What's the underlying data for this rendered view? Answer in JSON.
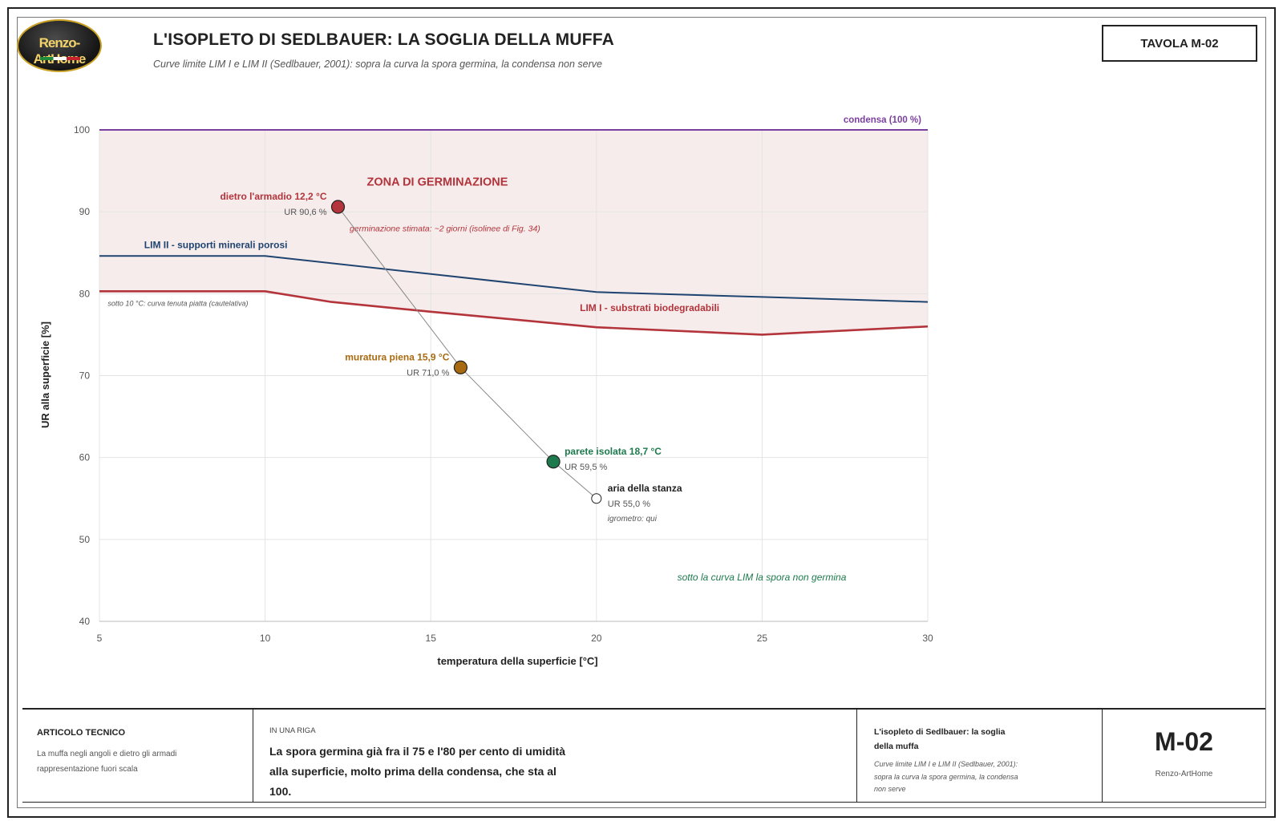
{
  "header": {
    "logo_text": "Renzo-ArtHome",
    "title": "L'ISOPLETO DI SEDLBAUER: LA SOGLIA DELLA MUFFA",
    "subtitle": "Curve limite LIM I e LIM II (Sedlbauer, 2001): sopra la curva la spora germina, la condensa non serve",
    "tavola": "TAVOLA M-02"
  },
  "colors": {
    "lim1": "#b3343a",
    "lim2": "#1f4470",
    "condensa": "#7b3fa0",
    "zone_fill": "#f6ecec",
    "muratura": "#a86a10",
    "isolata": "#1d7a4c",
    "note_green": "#1d7a4c"
  },
  "chart_data": {
    "type": "line",
    "xlabel": "temperatura della superficie [°C]",
    "ylabel": "UR alla superficie [%]",
    "xlim": [
      5,
      30
    ],
    "ylim": [
      40,
      100
    ],
    "x_ticks": [
      "5",
      "10",
      "15",
      "20",
      "25",
      "30"
    ],
    "y_ticks": [
      "40",
      "50",
      "60",
      "70",
      "80",
      "90",
      "100"
    ],
    "grid": true,
    "series": [
      {
        "name": "LIM II - supporti minerali porosi",
        "x": [
          5,
          10,
          15,
          20,
          25,
          30
        ],
        "y": [
          84.6,
          84.6,
          82.4,
          80.2,
          79.6,
          79.0
        ]
      },
      {
        "name": "LIM I - substrati biodegradabili",
        "x": [
          5,
          10,
          12,
          15,
          20,
          25,
          30
        ],
        "y": [
          80.3,
          80.3,
          79.0,
          77.8,
          75.9,
          75.0,
          76.0
        ]
      },
      {
        "name": "condensa (100 %)",
        "x": [
          5,
          30
        ],
        "y": [
          100,
          100
        ]
      }
    ],
    "points": [
      {
        "label": "dietro l'armadio 12,2 °C",
        "value": "UR 90,6 %",
        "x": 12.2,
        "y": 90.6
      },
      {
        "label": "muratura piena 15,9 °C",
        "value": "UR 71,0 %",
        "x": 15.9,
        "y": 71.0
      },
      {
        "label": "parete isolata 18,7 °C",
        "value": "UR 59,5 %",
        "x": 18.7,
        "y": 59.5
      },
      {
        "label": "aria della stanza",
        "value": "UR 55,0 %",
        "note": "igrometro: qui",
        "x": 20.0,
        "y": 55.0
      }
    ],
    "annotations": {
      "zone": "ZONA DI GERMINAZIONE",
      "germination": "germinazione stimata: ~2 giorni (isolinee di Fig. 34)",
      "flat": "sotto 10 °C: curva tenuta piatta (cautelativa)",
      "below": "sotto la curva LIM la spora non germina"
    }
  },
  "footer": {
    "col1_head": "ARTICOLO TECNICO",
    "col1_line1": "La muffa negli angoli e dietro gli armadi",
    "col1_line2": "rappresentazione fuori scala",
    "col2_head": "IN UNA RIGA",
    "col2_body": "La spora germina già fra il 75 e l'80 per cento di umidità alla superficie, molto prima della condensa, che sta al 100.",
    "col3_title": "L'isopleto di Sedlbauer: la soglia della muffa",
    "col3_sub": "Curve limite LIM I e LIM II (Sedlbauer, 2001): sopra la curva la spora germina, la condensa non serve",
    "col4_code": "M-02",
    "col4_brand": "Renzo-ArtHome"
  }
}
